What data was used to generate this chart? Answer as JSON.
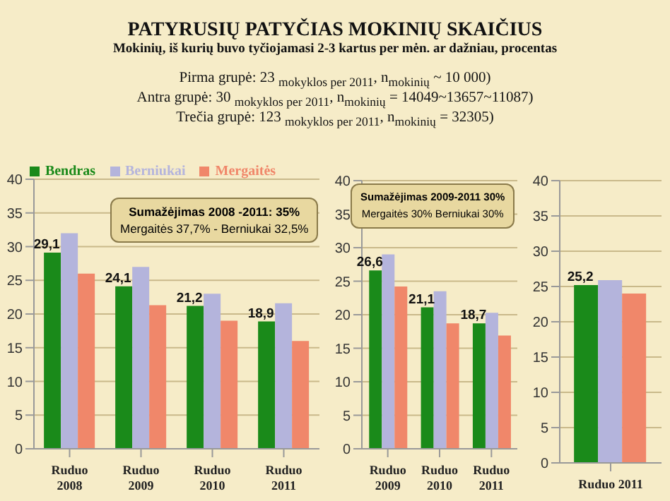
{
  "chart_data": [
    {
      "type": "bar",
      "title": "PATYRUSIŲ PATYČIAS MOKINIŲ SKAIČIUS",
      "subtitle": "Mokinių, iš kurių buvo tyčiojamasi 2-3 kartus per mėn. ar dažniau, procentas",
      "annotations": [
        "Pirma grupė: 23 $_{mokyklos per 2011}$, n$_{mokinių}$ ~ 10 000)",
        "Antra grupė: 30 $_{mokyklos per 2011}$, n$_{mokinių}$ = 14049~13657~11087)",
        "Trečia grupė: 123 $_{mokyklos per 2011}$, n$_{mokinių}$ = 32305)",
        "Sumažėjimas 2008 -2011: 35%",
        "Mergaitės 37,7% - Berniukai 32,5%"
      ],
      "categories": [
        "Ruduo 2008",
        "Ruduo 2009",
        "Ruduo 2010",
        "Ruduo 2011"
      ],
      "series": [
        {
          "name": "Bendras",
          "color": "#1a8a1a",
          "values": [
            29.1,
            24.1,
            21.2,
            18.9
          ],
          "value_labels": [
            "29,1",
            "24,1",
            "21,2",
            "18,9"
          ]
        },
        {
          "name": "Berniukai",
          "color": "#b4b4dc",
          "values": [
            32,
            27,
            23,
            21.6
          ]
        },
        {
          "name": "Mergaitės",
          "color": "#f0876a",
          "values": [
            26,
            21.3,
            19,
            16
          ]
        }
      ],
      "ylim": [
        0,
        40
      ],
      "yticks": [
        0,
        5,
        10,
        15,
        20,
        25,
        30,
        35,
        40
      ],
      "grid": "y",
      "legend": "top"
    },
    {
      "type": "bar",
      "annotations": [
        "Sumažėjimas 2009-2011 30%",
        "Mergaitės 30%    Berniukai 30%"
      ],
      "categories": [
        "Ruduo 2009",
        "Ruduo 2010",
        "Ruduo 2011"
      ],
      "series": [
        {
          "color": "#1a8a1a",
          "values": [
            26.6,
            21.1,
            18.7
          ],
          "value_labels": [
            "26,6",
            "21,1",
            "18,7"
          ]
        },
        {
          "color": "#b4b4dc",
          "values": [
            29,
            23.5,
            20.3
          ]
        },
        {
          "color": "#f0876a",
          "values": [
            24.2,
            18.7,
            16.9
          ]
        }
      ],
      "ylim": [
        0,
        40
      ],
      "yticks": [
        0,
        5,
        10,
        15,
        20,
        25,
        30,
        35,
        40
      ],
      "grid": "y"
    },
    {
      "type": "bar",
      "categories": [
        "Ruduo 2011"
      ],
      "series": [
        {
          "color": "#1a8a1a",
          "values": [
            25.2
          ],
          "value_labels": [
            "25,2"
          ]
        },
        {
          "color": "#b4b4dc",
          "values": [
            25.9
          ]
        },
        {
          "color": "#f0876a",
          "values": [
            24
          ]
        }
      ],
      "ylim": [
        0,
        40
      ],
      "yticks": [
        0,
        5,
        10,
        15,
        20,
        25,
        30,
        35,
        40
      ],
      "grid": "y"
    }
  ]
}
